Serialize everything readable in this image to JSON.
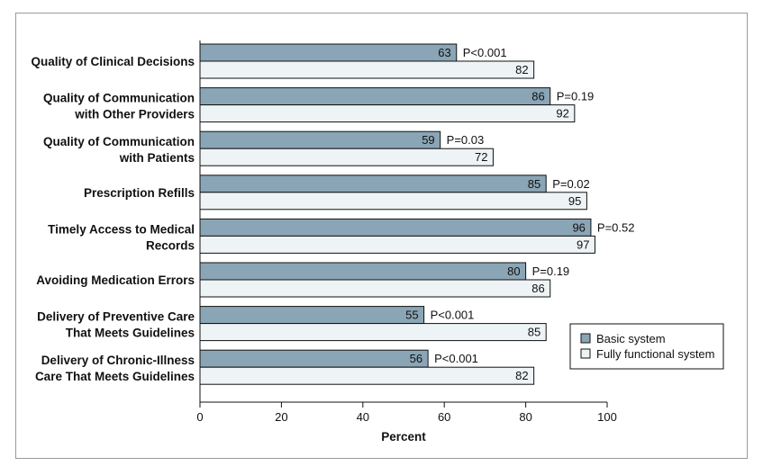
{
  "chart_data": {
    "type": "bar",
    "orientation": "horizontal",
    "categories": [
      [
        "Quality of Clinical Decisions"
      ],
      [
        "Quality of Communication",
        "with Other Providers"
      ],
      [
        "Quality of Communication",
        "with Patients"
      ],
      [
        "Prescription Refills"
      ],
      [
        "Timely Access to Medical",
        "Records"
      ],
      [
        "Avoiding Medication Errors"
      ],
      [
        "Delivery of Preventive Care",
        "That Meets Guidelines"
      ],
      [
        "Delivery of Chronic-Illness",
        "Care That Meets Guidelines"
      ]
    ],
    "series": [
      {
        "name": "Basic system",
        "color": "#8aa5b5",
        "values": [
          63,
          86,
          59,
          85,
          96,
          80,
          55,
          56
        ]
      },
      {
        "name": "Fully functional system",
        "color": "#eef3f6",
        "values": [
          82,
          92,
          72,
          95,
          97,
          86,
          85,
          82
        ]
      }
    ],
    "p_values": [
      "P<0.001",
      "P=0.19",
      "P=0.03",
      "P=0.02",
      "P=0.52",
      "P=0.19",
      "P<0.001",
      "P<0.001"
    ],
    "xlabel": "Percent",
    "xlim": [
      0,
      100
    ],
    "xticks": [
      0,
      20,
      40,
      60,
      80,
      100
    ],
    "legend_position": "right",
    "grid": false
  }
}
